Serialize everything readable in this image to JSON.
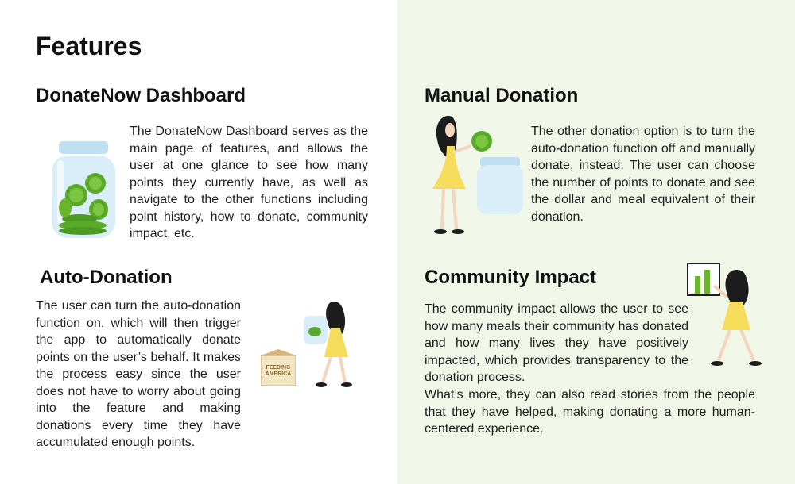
{
  "page": {
    "title": "Features",
    "background_left": "#ffffff",
    "background_right": "#f0f6e8",
    "accent_green": "#6bb52a",
    "accent_yellow": "#f7e06a"
  },
  "sections": {
    "dashboard": {
      "title": "DonateNow Dashboard",
      "body": "The DonateNow Dashboard serves as the main page of features, and allows the user at one glance to see how many points they currently have, as well as navigate to the other functions including point history, how to donate, community impact, etc.",
      "illustration": "coin-jar-icon"
    },
    "auto_donation": {
      "title": "Auto-Donation",
      "body": "The user can turn the auto-donation function on, which will then trigger the app to automatically donate points on the user’s behalf. It makes the process easy since the user does not have to worry about going into the feature and making donations every time they have accumulated enough points.",
      "box_label": "FEEDING AMERICA",
      "illustration": "woman-carrying-jar-icon"
    },
    "manual_donation": {
      "title": "Manual Donation",
      "body": "The other donation option is to turn the auto-donation function off and manually donate, instead. The user can choose the number of points to donate and see the dollar and meal equivalent of their donation.",
      "illustration": "woman-holding-coin-icon"
    },
    "community_impact": {
      "title": "Community Impact",
      "body": "The community impact allows the user to see how many meals their community has donated and how many lives they have positively impacted, which provides transparency to the donation process.",
      "body2": "What’s more, they can also read stories from the people that they have helped, making donating a more human-centered experience.",
      "illustration": "woman-presenting-chart-icon"
    }
  }
}
